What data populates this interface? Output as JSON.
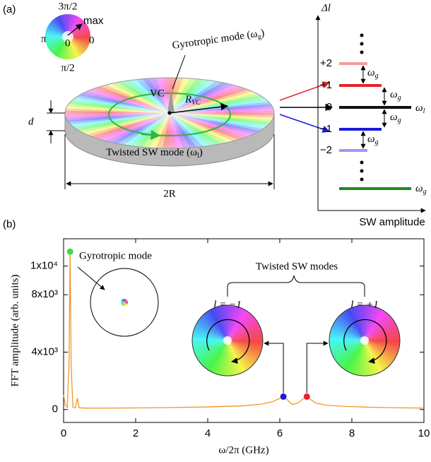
{
  "panel_a": {
    "label": "(a)",
    "wheel": {
      "top": "3π/2",
      "max": "max",
      "left": "π",
      "center": "0",
      "right": "0",
      "bottom": "π/2"
    },
    "gyrotropic": {
      "main": "Gyrotropic mode (ω",
      "sub": "g",
      "tail": ")"
    },
    "vc": "VC",
    "radius": {
      "main": "R",
      "sub": "VC"
    },
    "thickness": "d",
    "twisted": {
      "main": "Twisted SW mode (ω",
      "sub": "l",
      "tail": ")"
    },
    "diameter": "2R",
    "levels": {
      "axis_label": "Δl",
      "labels": [
        "+2",
        "+1",
        "0",
        "−1",
        "−2"
      ],
      "gap": {
        "main": "ω",
        "sub": "g"
      },
      "zero_freq": {
        "main": "ω",
        "sub": "l"
      },
      "bottom_freq": {
        "main": "ω",
        "sub": "g"
      },
      "x_label": "SW amplitude"
    }
  },
  "chart_data": {
    "type": "line",
    "panel_label": "(b)",
    "x_label": "ω/2π (GHz)",
    "y_label": "FFT amplitude (arb. units)",
    "xlim": [
      0,
      10
    ],
    "ylim": [
      -900,
      11900
    ],
    "xticks": [
      0,
      2,
      4,
      6,
      8,
      10
    ],
    "yticks": [
      0,
      {
        "value": 4000,
        "label": "4x10³"
      },
      {
        "value": 8000,
        "label": "8x10³"
      },
      {
        "value": 10000,
        "label": "1x10⁴"
      }
    ],
    "series": [
      {
        "color": "#f0962c",
        "x": [
          0,
          0.05,
          0.1,
          0.15,
          0.18,
          0.21,
          0.26,
          0.33,
          0.38,
          0.43,
          0.6,
          1,
          2,
          3,
          4,
          5,
          5.5,
          5.8,
          6.0,
          6.1,
          6.2,
          6.35,
          6.5,
          6.65,
          6.75,
          6.85,
          7.0,
          7.3,
          7.8,
          8.5,
          9.3,
          10
        ],
        "values": [
          1000,
          300,
          150,
          3000,
          11000,
          3000,
          150,
          120,
          800,
          120,
          100,
          100,
          110,
          140,
          180,
          260,
          380,
          550,
          780,
          900,
          700,
          350,
          450,
          750,
          900,
          700,
          450,
          300,
          220,
          160,
          120,
          100
        ]
      }
    ],
    "markers": {
      "x": [
        0.18,
        6.1,
        6.75
      ],
      "values": [
        11000,
        900,
        900
      ],
      "colors": [
        "#3ddc3d",
        "#1a1adc",
        "#e8222a"
      ]
    },
    "annotations": {
      "gyrotropic": "Gyrotropic mode",
      "twisted": "Twisted SW modes",
      "l_minus": "l = −1",
      "l_plus": "l = +1"
    }
  }
}
